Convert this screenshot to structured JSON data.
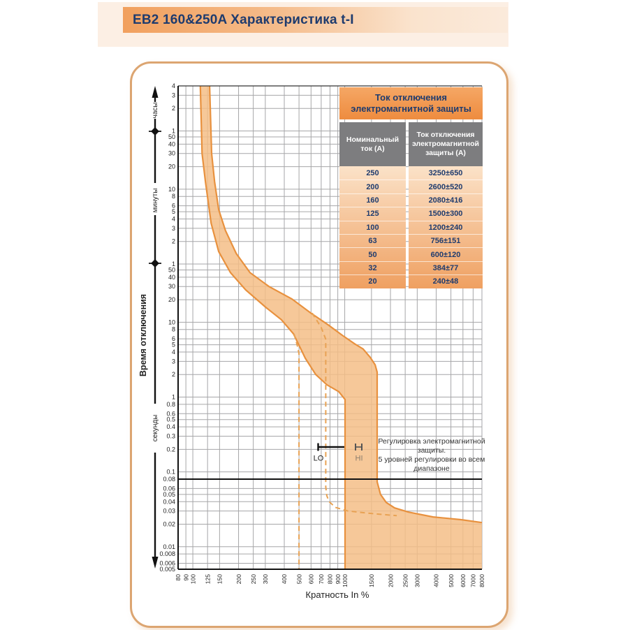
{
  "header": {
    "title": "EB2 160&250A Характеристика t-I"
  },
  "trip_table": {
    "banner": "Ток отключения электромагнитной защиты",
    "columns": [
      "Номинальный ток (А)",
      "Ток отключения электромагнитной защиты (А)"
    ],
    "rows": [
      [
        "250",
        "3250±650"
      ],
      [
        "200",
        "2600±520"
      ],
      [
        "160",
        "2080±416"
      ],
      [
        "125",
        "1500±300"
      ],
      [
        "100",
        "1200±240"
      ],
      [
        "63",
        "756±151"
      ],
      [
        "50",
        "600±120"
      ],
      [
        "32",
        "384±77"
      ],
      [
        "20",
        "240±48"
      ]
    ]
  },
  "chart_data": {
    "type": "area",
    "x_scale": "log",
    "y_scale": "log",
    "xlabel": "Кратность In %",
    "ylabel": "Время отключения",
    "xlim_percent": [
      80,
      8000
    ],
    "ylim_seconds": [
      0.005,
      14400
    ],
    "x_ticks_percent": [
      80,
      90,
      100,
      125,
      150,
      200,
      250,
      300,
      400,
      500,
      600,
      700,
      800,
      900,
      1000,
      1500,
      2000,
      2500,
      3000,
      4000,
      5000,
      6000,
      7000,
      8000
    ],
    "y_ticks": [
      {
        "label": "4",
        "t": 14400
      },
      {
        "label": "3",
        "t": 10800
      },
      {
        "label": "2",
        "t": 7200
      },
      {
        "label": "1",
        "t": 3600
      },
      {
        "label": "50",
        "t": 3000
      },
      {
        "label": "40",
        "t": 2400
      },
      {
        "label": "30",
        "t": 1800
      },
      {
        "label": "20",
        "t": 1200
      },
      {
        "label": "10",
        "t": 600
      },
      {
        "label": "8",
        "t": 480
      },
      {
        "label": "6",
        "t": 360
      },
      {
        "label": "5",
        "t": 300
      },
      {
        "label": "4",
        "t": 240
      },
      {
        "label": "3",
        "t": 180
      },
      {
        "label": "2",
        "t": 120
      },
      {
        "label": "1",
        "t": 60
      },
      {
        "label": "50",
        "t": 50
      },
      {
        "label": "40",
        "t": 40
      },
      {
        "label": "30",
        "t": 30
      },
      {
        "label": "20",
        "t": 20
      },
      {
        "label": "10",
        "t": 10
      },
      {
        "label": "8",
        "t": 8
      },
      {
        "label": "6",
        "t": 6
      },
      {
        "label": "5",
        "t": 5
      },
      {
        "label": "4",
        "t": 4
      },
      {
        "label": "3",
        "t": 3
      },
      {
        "label": "2",
        "t": 2
      },
      {
        "label": "1",
        "t": 1
      },
      {
        "label": "0.8",
        "t": 0.8
      },
      {
        "label": "0.6",
        "t": 0.6
      },
      {
        "label": "0.5",
        "t": 0.5
      },
      {
        "label": "0.4",
        "t": 0.4
      },
      {
        "label": "0.3",
        "t": 0.3
      },
      {
        "label": "0.2",
        "t": 0.2
      },
      {
        "label": "0.1",
        "t": 0.1
      },
      {
        "label": "0.08",
        "t": 0.08
      },
      {
        "label": "0.06",
        "t": 0.06
      },
      {
        "label": "0.05",
        "t": 0.05
      },
      {
        "label": "0.04",
        "t": 0.04
      },
      {
        "label": "0.03",
        "t": 0.03
      },
      {
        "label": "0.02",
        "t": 0.02
      },
      {
        "label": "0.01",
        "t": 0.01
      },
      {
        "label": "0.008",
        "t": 0.008
      },
      {
        "label": "0.006",
        "t": 0.006
      },
      {
        "label": "0.005",
        "t": 0.005
      }
    ],
    "y_axis_units": {
      "hours": "часы",
      "minutes": "минуты",
      "seconds": "секунды"
    },
    "emphasized_time_line_s": 0.08,
    "series": [
      {
        "name": "thermal_trip_min",
        "style": "solid",
        "points_percent_seconds": [
          [
            112,
            14400
          ],
          [
            115,
            1800
          ],
          [
            121,
            760
          ],
          [
            132,
            210
          ],
          [
            148,
            88
          ],
          [
            177,
            46
          ],
          [
            223,
            27
          ],
          [
            300,
            16
          ],
          [
            383,
            10.8
          ],
          [
            460,
            7.0
          ],
          [
            550,
            3.3
          ],
          [
            644,
            2.0
          ],
          [
            763,
            1.46
          ],
          [
            914,
            1.18
          ],
          [
            1005,
            0.93
          ],
          [
            1005,
            0.005
          ]
        ]
      },
      {
        "name": "thermal_trip_max",
        "style": "solid",
        "points_percent_seconds": [
          [
            129,
            14400
          ],
          [
            133,
            1800
          ],
          [
            139,
            760
          ],
          [
            148,
            320
          ],
          [
            164,
            168
          ],
          [
            193,
            83
          ],
          [
            238,
            46
          ],
          [
            317,
            30
          ],
          [
            449,
            20.5
          ],
          [
            597,
            13.3
          ],
          [
            779,
            9.2
          ],
          [
            963,
            6.7
          ],
          [
            1170,
            5.1
          ],
          [
            1320,
            4.4
          ],
          [
            1470,
            3.4
          ],
          [
            1585,
            2.7
          ],
          [
            1634,
            2.15
          ],
          [
            1634,
            0.0735
          ],
          [
            1720,
            0.05
          ],
          [
            1875,
            0.039
          ],
          [
            2130,
            0.033
          ],
          [
            2630,
            0.029
          ],
          [
            3810,
            0.025
          ],
          [
            5820,
            0.023
          ],
          [
            8000,
            0.021
          ]
        ]
      },
      {
        "name": "magnetic_lo_min",
        "style": "dashed",
        "points_percent_seconds": [
          [
            464,
            7.0
          ],
          [
            488,
            4.8
          ],
          [
            500,
            3.8
          ],
          [
            500,
            0.005
          ]
        ]
      },
      {
        "name": "magnetic_lo_max",
        "style": "dashed",
        "points_percent_seconds": [
          [
            610,
            13.3
          ],
          [
            700,
            8.5
          ],
          [
            748,
            6.0
          ],
          [
            750,
            5.0
          ],
          [
            750,
            0.063
          ],
          [
            762,
            0.048
          ],
          [
            790,
            0.04
          ],
          [
            870,
            0.0335
          ],
          [
            1050,
            0.03
          ],
          [
            1430,
            0.028
          ],
          [
            1950,
            0.0265
          ],
          [
            2200,
            0.026
          ]
        ]
      }
    ],
    "annotations": {
      "lo_label": "LO",
      "hi_label": "HI",
      "note_lines": [
        "Регулировка электромагнитной",
        "защиты.",
        "5 уровней регулировки во всем",
        "диапазоне"
      ]
    }
  },
  "colors": {
    "band_fill": "#F4BE85",
    "band_stroke": "#E8913E",
    "dashed": "#E8A254",
    "grid": "#A6A6A8",
    "emphasis_line": "#111111",
    "navy": "#1E3B6E",
    "orange": "#EE8C3F",
    "panel_border": "#DCA571"
  }
}
